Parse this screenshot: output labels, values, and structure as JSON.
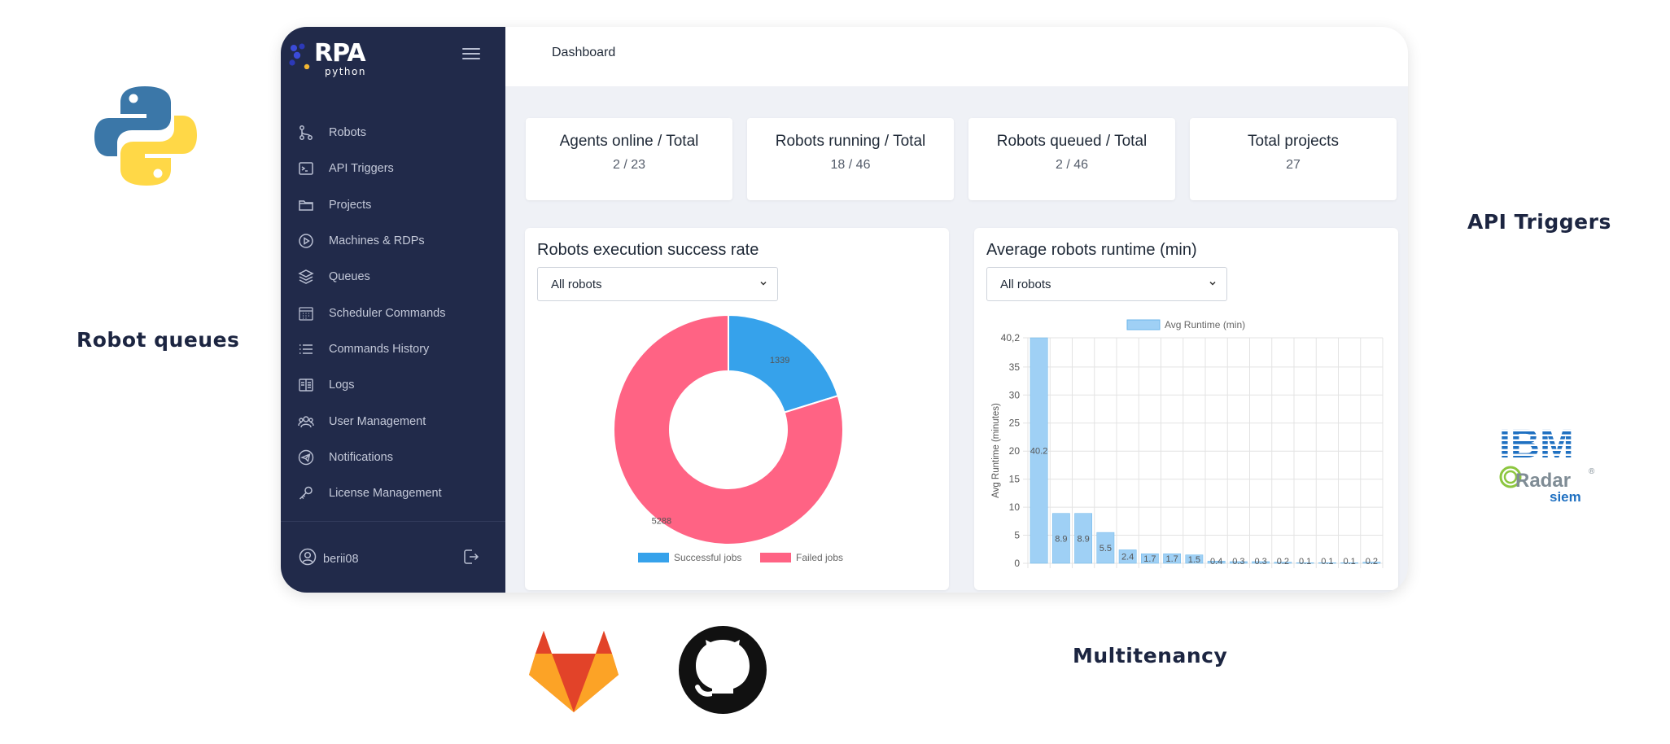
{
  "floating_labels": {
    "robot_queues": "Robot queues",
    "api_triggers": "API Triggers",
    "multitenancy": "Multitenancy"
  },
  "logos": {
    "ibm_text": "IBM",
    "qradar_text": "Radar",
    "qradar_q": "Q",
    "siem_text": "siem",
    "registered": "®"
  },
  "app": {
    "brand": {
      "main": "RPA",
      "sub": "python"
    },
    "breadcrumb": "Dashboard",
    "sidebar": {
      "items": [
        {
          "label": "Robots",
          "icon": "robot-branch-icon"
        },
        {
          "label": "API Triggers",
          "icon": "terminal-icon"
        },
        {
          "label": "Projects",
          "icon": "folder-icon"
        },
        {
          "label": "Machines & RDPs",
          "icon": "play-circle-icon"
        },
        {
          "label": "Queues",
          "icon": "layers-icon"
        },
        {
          "label": "Scheduler Commands",
          "icon": "calendar-icon"
        },
        {
          "label": "Commands History",
          "icon": "list-icon"
        },
        {
          "label": "Logs",
          "icon": "book-icon"
        },
        {
          "label": "User Management",
          "icon": "users-icon"
        },
        {
          "label": "Notifications",
          "icon": "send-icon"
        },
        {
          "label": "License Management",
          "icon": "key-icon"
        }
      ],
      "user": "berii08"
    },
    "stats": [
      {
        "title": "Agents online / Total",
        "value": "2 / 23"
      },
      {
        "title": "Robots running / Total",
        "value": "18 / 46"
      },
      {
        "title": "Robots queued / Total",
        "value": "2 / 46"
      },
      {
        "title": "Total projects",
        "value": "27"
      }
    ],
    "panels": {
      "success": {
        "title": "Robots execution success rate",
        "select_value": "All robots"
      },
      "runtime": {
        "title": "Average robots runtime (min)",
        "select_value": "All robots"
      }
    }
  },
  "colors": {
    "sidebar_bg": "#212a4a",
    "successful": "#36a2eb",
    "failed": "#ff6384",
    "bar_fill": "#9fd0f5",
    "bar_stroke": "#6cb6ea"
  },
  "chart_data": [
    {
      "type": "pie",
      "variant": "doughnut",
      "labels": [
        "Successful jobs",
        "Failed jobs"
      ],
      "values": [
        1339,
        5288
      ],
      "legend": "bottom"
    },
    {
      "type": "bar",
      "categories": [
        "",
        "",
        "",
        "",
        "",
        "",
        "",
        "",
        "",
        "",
        "",
        "",
        "",
        "",
        "",
        ""
      ],
      "series": [
        {
          "name": "Avg Runtime (min)",
          "values": [
            40.2,
            8.9,
            8.9,
            5.5,
            2.4,
            1.7,
            1.7,
            1.5,
            0.4,
            0.3,
            0.3,
            0.2,
            0.1,
            0.1,
            0.1,
            0.2
          ]
        }
      ],
      "ylabel": "Avg Runtime (minutes)",
      "ylim": [
        0,
        40.2
      ],
      "yticks": [
        "0",
        "5",
        "10",
        "15",
        "20",
        "25",
        "30",
        "35",
        "40,2"
      ],
      "grid": true,
      "legend": "top"
    }
  ]
}
